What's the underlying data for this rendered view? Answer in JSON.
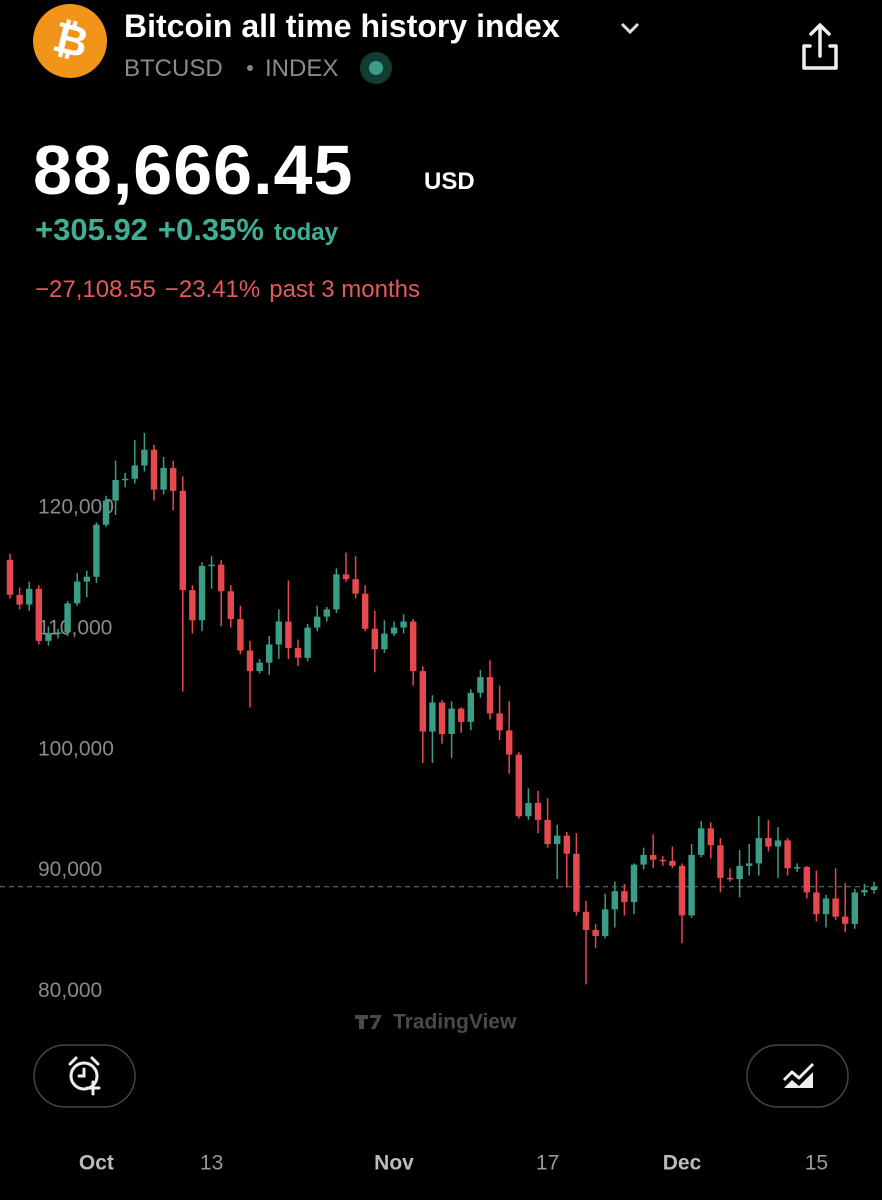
{
  "header": {
    "title": "Bitcoin all time history index",
    "symbol": "BTCUSD",
    "kind": "INDEX",
    "price": "88,666.45",
    "currency": "USD",
    "change_today": "+305.92",
    "change_today_pct": "+0.35%",
    "today_label": "today",
    "change_period": "−27,108.55",
    "change_period_pct": "−23.41%",
    "period_label": "past 3 months"
  },
  "chart_data": {
    "type": "candlestick",
    "x": [
      "09-22",
      "09-23",
      "09-24",
      "09-25",
      "09-26",
      "09-27",
      "09-28",
      "09-29",
      "09-30",
      "10-01",
      "10-02",
      "10-03",
      "10-04",
      "10-05",
      "10-06",
      "10-07",
      "10-08",
      "10-09",
      "10-10",
      "10-11",
      "10-12",
      "10-13",
      "10-14",
      "10-15",
      "10-16",
      "10-17",
      "10-18",
      "10-19",
      "10-20",
      "10-21",
      "10-22",
      "10-23",
      "10-24",
      "10-25",
      "10-26",
      "10-27",
      "10-28",
      "10-29",
      "10-30",
      "10-31",
      "11-01",
      "11-02",
      "11-03",
      "11-04",
      "11-05",
      "11-06",
      "11-07",
      "11-08",
      "11-09",
      "11-10",
      "11-11",
      "11-12",
      "11-13",
      "11-14",
      "11-15",
      "11-16",
      "11-17",
      "11-18",
      "11-19",
      "11-20",
      "11-21",
      "11-22",
      "11-23",
      "11-24",
      "11-25",
      "11-26",
      "11-27",
      "11-28",
      "11-29",
      "11-30",
      "12-01",
      "12-02",
      "12-03",
      "12-04",
      "12-05",
      "12-06",
      "12-07",
      "12-08",
      "12-09",
      "12-10",
      "12-11",
      "12-12",
      "12-13",
      "12-14",
      "12-15",
      "12-16",
      "12-17",
      "12-18",
      "12-19",
      "12-20",
      "12-21"
    ],
    "open": [
      115700,
      112800,
      112000,
      113300,
      109000,
      109600,
      109700,
      112100,
      113900,
      114300,
      118600,
      120600,
      122300,
      122400,
      123500,
      124800,
      121500,
      123300,
      121400,
      113200,
      110700,
      115200,
      115300,
      113100,
      110800,
      108200,
      106500,
      107200,
      108700,
      110600,
      108400,
      107600,
      110100,
      111000,
      111600,
      114500,
      114100,
      112900,
      110000,
      108300,
      109600,
      110100,
      110600,
      106500,
      101500,
      103900,
      101300,
      103400,
      102300,
      104700,
      106000,
      103000,
      101600,
      99600,
      94500,
      95600,
      94200,
      92200,
      92900,
      91400,
      86600,
      85100,
      84600,
      86800,
      88300,
      87400,
      90500,
      91300,
      90900,
      90800,
      90400,
      86300,
      91300,
      93500,
      92100,
      89400,
      89300,
      90400,
      90600,
      92700,
      92000,
      92500,
      90200,
      90300,
      88200,
      86400,
      87700,
      86200,
      85600,
      88200,
      88400
    ],
    "high": [
      116200,
      113400,
      113900,
      113600,
      110200,
      110000,
      112300,
      114600,
      114800,
      118800,
      121000,
      123900,
      122900,
      125600,
      126200,
      125200,
      124200,
      123900,
      122600,
      113600,
      115500,
      116000,
      115700,
      113600,
      111900,
      109000,
      107500,
      109400,
      111600,
      114000,
      109100,
      110400,
      111900,
      111800,
      115000,
      116300,
      116000,
      113600,
      111500,
      110700,
      110600,
      111200,
      110800,
      106900,
      104500,
      104100,
      104000,
      103500,
      105000,
      106600,
      107400,
      105300,
      104000,
      99800,
      96800,
      96600,
      96000,
      93800,
      93200,
      93100,
      87500,
      85600,
      88100,
      89100,
      88900,
      90600,
      91900,
      93000,
      91200,
      92000,
      90600,
      92200,
      94100,
      94000,
      92700,
      90200,
      91700,
      92200,
      94500,
      94200,
      93600,
      92700,
      90600,
      90400,
      90000,
      88000,
      90200,
      89000,
      88500,
      88900,
      89100
    ],
    "low": [
      112500,
      111600,
      111500,
      108700,
      108600,
      109200,
      109400,
      111900,
      112600,
      113800,
      118400,
      119400,
      121700,
      122000,
      123000,
      120600,
      121100,
      119800,
      104800,
      109600,
      109800,
      113300,
      110200,
      110100,
      107900,
      103500,
      106300,
      106200,
      107500,
      107500,
      106900,
      107300,
      109800,
      110600,
      111300,
      113900,
      112500,
      109800,
      106400,
      108000,
      109400,
      109600,
      105300,
      98900,
      98900,
      100500,
      99300,
      101400,
      101600,
      104300,
      102500,
      100800,
      98000,
      94300,
      94200,
      93100,
      91900,
      89300,
      88600,
      86300,
      80600,
      83600,
      84400,
      85300,
      86300,
      86400,
      90100,
      90200,
      90400,
      90200,
      84000,
      86100,
      91100,
      91000,
      88200,
      89100,
      87800,
      89600,
      89600,
      91600,
      89400,
      89600,
      89900,
      87700,
      85800,
      85300,
      85900,
      84900,
      85200,
      87900,
      88100
    ],
    "close": [
      112800,
      112000,
      113300,
      109000,
      109600,
      109700,
      112100,
      113900,
      114300,
      118600,
      120600,
      122300,
      122400,
      123500,
      124800,
      121500,
      123300,
      121400,
      113200,
      110700,
      115200,
      115300,
      113100,
      110800,
      108200,
      106500,
      107200,
      108700,
      110600,
      108400,
      107600,
      110100,
      111000,
      111600,
      114500,
      114100,
      112900,
      110000,
      108300,
      109600,
      110100,
      110600,
      106500,
      101500,
      103900,
      101300,
      103400,
      102300,
      104700,
      106000,
      103000,
      101600,
      99600,
      94500,
      95600,
      94200,
      92200,
      92900,
      91400,
      86600,
      85100,
      84600,
      86800,
      88300,
      87400,
      90500,
      91300,
      90900,
      90800,
      90400,
      86300,
      91300,
      93500,
      92100,
      89400,
      89300,
      90400,
      90600,
      92700,
      92000,
      92500,
      90200,
      90300,
      88200,
      86400,
      87700,
      86200,
      85600,
      88200,
      88400,
      88700
    ],
    "up_color": "#3a9e86",
    "down_color": "#e5484d",
    "ylim": [
      76000,
      134700
    ],
    "yticks": [
      {
        "value": 80000,
        "label": "80,000"
      },
      {
        "value": 90000,
        "label": "90,000"
      },
      {
        "value": 100000,
        "label": "100,000"
      },
      {
        "value": 110000,
        "label": "110,000"
      },
      {
        "value": 120000,
        "label": "120,000"
      }
    ],
    "xticks": [
      {
        "value": "10-01",
        "label": "Oct"
      },
      {
        "value": "10-13",
        "label": "13"
      },
      {
        "value": "11-01",
        "label": "Nov"
      },
      {
        "value": "11-17",
        "label": "17"
      },
      {
        "value": "12-01",
        "label": "Dec"
      },
      {
        "value": "12-15",
        "label": "15"
      }
    ],
    "last_value": 88666.45,
    "watermark": "TradingView"
  }
}
